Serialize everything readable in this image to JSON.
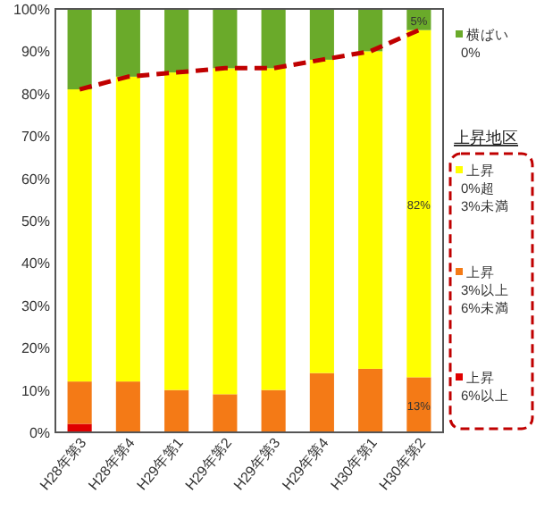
{
  "chart_data": {
    "type": "bar",
    "stacked": true,
    "categories": [
      "H28年第3",
      "H28年第4",
      "H29年第1",
      "H29年第2",
      "H29年第3",
      "H29年第4",
      "H30年第1",
      "H30年第2"
    ],
    "series": [
      {
        "name": "上昇 6%以上",
        "color": "#e00000",
        "values": [
          2,
          0,
          0,
          0,
          0,
          0,
          0,
          0
        ]
      },
      {
        "name": "上昇 3%以上 6%未満",
        "color": "#f47a16",
        "values": [
          10,
          12,
          10,
          9,
          10,
          14,
          15,
          13
        ],
        "value_labels": [
          null,
          null,
          null,
          null,
          null,
          null,
          null,
          "13%"
        ]
      },
      {
        "name": "上昇 0%超 3%未満",
        "color": "#ffff00",
        "values": [
          69,
          72,
          75,
          77,
          76,
          74,
          75,
          82
        ],
        "value_labels": [
          null,
          null,
          null,
          null,
          null,
          null,
          null,
          "82%"
        ]
      },
      {
        "name": "横ばい 0%",
        "color": "#6aaa2a",
        "values": [
          19,
          16,
          15,
          14,
          14,
          12,
          10,
          5
        ],
        "value_labels": [
          null,
          null,
          null,
          null,
          null,
          null,
          null,
          "5%"
        ]
      },
      {
        "type": "line",
        "color": "#c00000",
        "line_style": "dashed",
        "values": [
          81,
          84,
          85,
          86,
          86,
          88,
          90,
          95
        ]
      }
    ],
    "legend_title": "上昇地区",
    "legend": "right",
    "ylim": [
      0,
      100
    ],
    "yticks": [
      {
        "value": 0,
        "label": "0%"
      },
      {
        "value": 10,
        "label": "10%"
      },
      {
        "value": 20,
        "label": "20%"
      },
      {
        "value": 30,
        "label": "30%"
      },
      {
        "value": 40,
        "label": "40%"
      },
      {
        "value": 50,
        "label": "50%"
      },
      {
        "value": 60,
        "label": "60%"
      },
      {
        "value": 70,
        "label": "70%"
      },
      {
        "value": 80,
        "label": "80%"
      },
      {
        "value": 90,
        "label": "90%"
      },
      {
        "value": 100,
        "label": "100%"
      }
    ]
  }
}
